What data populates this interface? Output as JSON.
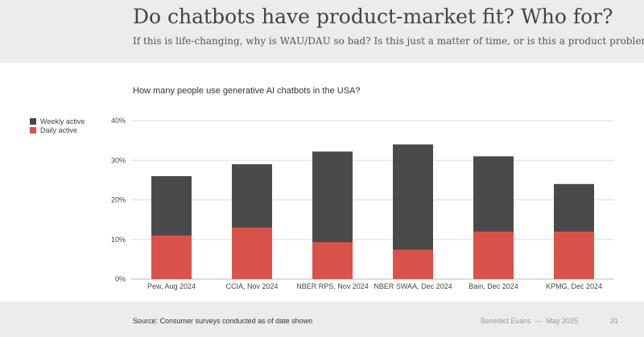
{
  "header": {
    "title": "Do chatbots have product-market fit? Who for?",
    "subtitle": "If this is life-changing, why is WAU/DAU so bad? Is this just a matter of time, or is this a product problem?"
  },
  "chart_data": {
    "type": "bar",
    "stacked": false,
    "overlaid": true,
    "title": "How many people use generative AI chatbots in the USA?",
    "categories": [
      "Pew, Aug 2024",
      "CCIA, Nov 2024",
      "NBER RPS, Nov 2024",
      "NBER SWAA, Dec 2024",
      "Bain, Dec 2024",
      "KPMG, Dec 2024"
    ],
    "series": [
      {
        "name": "Weekly active",
        "values": [
          26,
          29,
          32.2,
          34,
          31,
          24
        ],
        "color": "#4a4a4a"
      },
      {
        "name": "Daily active",
        "values": [
          11,
          13,
          9.3,
          7.4,
          12,
          12
        ],
        "color": "#d9534a"
      }
    ],
    "ylim": [
      0,
      40
    ],
    "yticks": [
      "0%",
      "10%",
      "20%",
      "30%",
      "40%"
    ],
    "ytick_values": [
      0,
      10,
      20,
      30,
      40
    ],
    "grid": true,
    "legend_position": "left"
  },
  "footer": {
    "source": "Source: Consumer surveys conducted as of date shown",
    "author": "Benedict Evans",
    "separator": "—",
    "date": "May 2025",
    "page": "31"
  }
}
